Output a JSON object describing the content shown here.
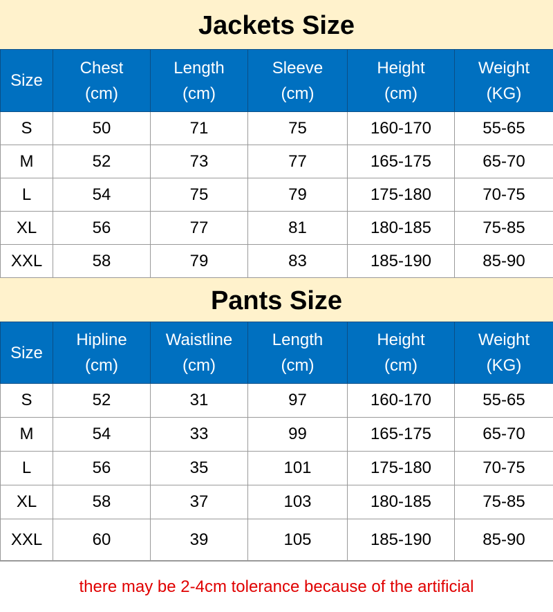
{
  "jackets": {
    "title": "Jackets Size",
    "headers": [
      [
        "Size",
        ""
      ],
      [
        "Chest",
        "(cm)"
      ],
      [
        "Length",
        "(cm)"
      ],
      [
        "Sleeve",
        "(cm)"
      ],
      [
        "Height",
        "(cm)"
      ],
      [
        "Weight",
        "(KG)"
      ]
    ],
    "rows": [
      [
        "S",
        "50",
        "71",
        "75",
        "160-170",
        "55-65"
      ],
      [
        "M",
        "52",
        "73",
        "77",
        "165-175",
        "65-70"
      ],
      [
        "L",
        "54",
        "75",
        "79",
        "175-180",
        "70-75"
      ],
      [
        "XL",
        "56",
        "77",
        "81",
        "180-185",
        "75-85"
      ],
      [
        "XXL",
        "58",
        "79",
        "83",
        "185-190",
        "85-90"
      ]
    ]
  },
  "pants": {
    "title": "Pants Size",
    "headers": [
      [
        "Size",
        ""
      ],
      [
        "Hipline",
        "(cm)"
      ],
      [
        "Waistline",
        "(cm)"
      ],
      [
        "Length",
        "(cm)"
      ],
      [
        "Height",
        "(cm)"
      ],
      [
        "Weight",
        "(KG)"
      ]
    ],
    "rows": [
      [
        "S",
        "52",
        "31",
        "97",
        "160-170",
        "55-65"
      ],
      [
        "M",
        "54",
        "33",
        "99",
        "165-175",
        "65-70"
      ],
      [
        "L",
        "56",
        "35",
        "101",
        "175-180",
        "70-75"
      ],
      [
        "XL",
        "58",
        "37",
        "103",
        "180-185",
        "75-85"
      ],
      [
        "XXL",
        "60",
        "39",
        "105",
        "185-190",
        "85-90"
      ]
    ]
  },
  "note": "there may be 2-4cm tolerance because of the artificial",
  "colors": {
    "header_bg": "#0070c0",
    "title_bg": "#fff2cc",
    "note": "#e00000"
  }
}
